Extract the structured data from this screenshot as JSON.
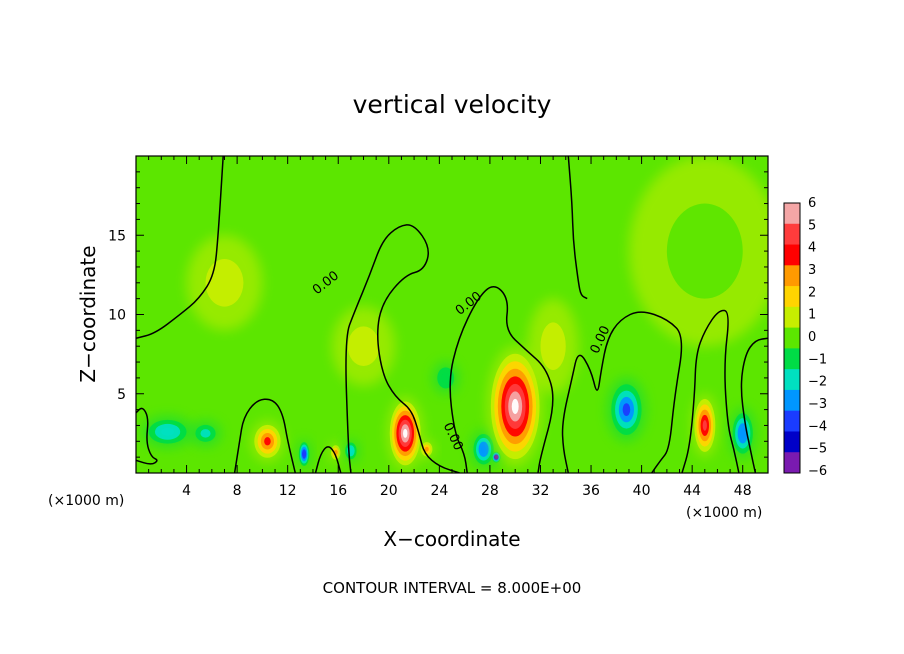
{
  "chart_data": {
    "type": "heatmap",
    "title": "vertical velocity",
    "xlabel": "X−coordinate",
    "ylabel": "Z−coordinate",
    "x_unit": "(×1000 m)",
    "x_unit_right": "(×1000 m)",
    "xlim": [
      0,
      50
    ],
    "ylim": [
      0,
      20
    ],
    "x_ticks": [
      4,
      8,
      12,
      16,
      20,
      24,
      28,
      32,
      36,
      40,
      44,
      48
    ],
    "x_tick_labels": [
      "4",
      "8",
      "12",
      "16",
      "20",
      "24",
      "28",
      "32",
      "36",
      "40",
      "44",
      "48"
    ],
    "y_ticks": [
      5,
      10,
      15
    ],
    "y_tick_labels": [
      "5",
      "10",
      "15"
    ],
    "colorbar": {
      "levels": [
        6,
        5,
        4,
        3,
        2,
        1,
        0,
        -1,
        -2,
        -3,
        -4,
        -5,
        -6
      ],
      "labels": [
        "6",
        "5",
        "4",
        "3",
        "2",
        "1",
        "0",
        "−1",
        "−2",
        "−3",
        "−4",
        "−5",
        "−6"
      ],
      "colors": [
        "#f4a6a6",
        "#ff3c3c",
        "#ff0000",
        "#ff9a00",
        "#ffd400",
        "#c6ee00",
        "#5ce600",
        "#00dc46",
        "#00e0c0",
        "#0096ff",
        "#1a3cff",
        "#0000c8",
        "#7a1ab0"
      ]
    },
    "background_color": "#5ce600",
    "cells": [
      {
        "x": 2.5,
        "z": 2.6,
        "rx": 2.0,
        "rz": 1.0,
        "value": -2.3
      },
      {
        "x": 5.5,
        "z": 2.5,
        "rx": 1.2,
        "rz": 0.8,
        "value": -2.0
      },
      {
        "x": 7.0,
        "z": 12.0,
        "rx": 3.0,
        "rz": 3.0,
        "value": 0.5
      },
      {
        "x": 10.4,
        "z": 2.0,
        "rx": 1.3,
        "rz": 1.3,
        "value": 3.5
      },
      {
        "x": 13.3,
        "z": 1.2,
        "rx": 0.5,
        "rz": 0.9,
        "value": -4.5
      },
      {
        "x": 15.8,
        "z": 1.3,
        "rx": 0.5,
        "rz": 0.6,
        "value": 2.5
      },
      {
        "x": 17.0,
        "z": 1.4,
        "rx": 0.6,
        "rz": 0.7,
        "value": -2.5
      },
      {
        "x": 18.0,
        "z": 8.0,
        "rx": 2.5,
        "rz": 2.5,
        "value": 1.0
      },
      {
        "x": 21.3,
        "z": 2.5,
        "rx": 1.4,
        "rz": 2.3,
        "value": 6.5
      },
      {
        "x": 23.0,
        "z": 1.5,
        "rx": 0.6,
        "rz": 0.6,
        "value": 2.5
      },
      {
        "x": 24.5,
        "z": 6.0,
        "rx": 1.0,
        "rz": 1.0,
        "value": -1.5
      },
      {
        "x": 27.5,
        "z": 1.5,
        "rx": 1.0,
        "rz": 1.2,
        "value": -3.5
      },
      {
        "x": 28.5,
        "z": 1.0,
        "rx": 0.4,
        "rz": 0.4,
        "value": -6.0
      },
      {
        "x": 30.0,
        "z": 4.2,
        "rx": 2.2,
        "rz": 3.8,
        "value": 6.5
      },
      {
        "x": 33.0,
        "z": 8.0,
        "rx": 2.0,
        "rz": 3.0,
        "value": 0.6
      },
      {
        "x": 38.8,
        "z": 4.0,
        "rx": 1.5,
        "rz": 2.0,
        "value": -4.0
      },
      {
        "x": 45.0,
        "z": 3.0,
        "rx": 1.0,
        "rz": 2.0,
        "value": 4.5
      },
      {
        "x": 48.0,
        "z": 2.5,
        "rx": 1.0,
        "rz": 1.6,
        "value": -3.5
      },
      {
        "x": 45.0,
        "z": 14.0,
        "rx": 6.0,
        "rz": 6.0,
        "value": 0.4
      }
    ],
    "contour_label": "0.00",
    "contour_level": 0.0,
    "contour_label_positions": [
      {
        "x": 15.2,
        "z": 11.8,
        "angle": -38
      },
      {
        "x": 26.5,
        "z": 10.5,
        "angle": -38
      },
      {
        "x": 37.0,
        "z": 8.3,
        "angle": -65
      },
      {
        "x": 24.8,
        "z": 2.2,
        "angle": 65
      }
    ],
    "contour_lines": [
      [
        [
          0.0,
          8.5
        ],
        [
          1.5,
          8.8
        ],
        [
          3.5,
          10.0
        ],
        [
          5.0,
          11.0
        ],
        [
          6.2,
          12.5
        ],
        [
          6.5,
          15.0
        ],
        [
          6.9,
          20.0
        ]
      ],
      [
        [
          0.0,
          3.8
        ],
        [
          0.5,
          4.2
        ],
        [
          1.0,
          3.5
        ],
        [
          0.8,
          2.0
        ],
        [
          1.2,
          1.0
        ],
        [
          1.8,
          0.8
        ],
        [
          1.2,
          0.5
        ],
        [
          0.0,
          0.8
        ]
      ],
      [
        [
          7.8,
          0.0
        ],
        [
          8.2,
          2.0
        ],
        [
          8.5,
          3.5
        ],
        [
          9.5,
          4.6
        ],
        [
          10.8,
          4.7
        ],
        [
          11.6,
          3.8
        ],
        [
          12.0,
          2.0
        ],
        [
          12.6,
          0.0
        ]
      ],
      [
        [
          14.2,
          0.0
        ],
        [
          14.6,
          1.2
        ],
        [
          15.2,
          1.8
        ],
        [
          15.8,
          1.2
        ],
        [
          16.2,
          0.0
        ]
      ],
      [
        [
          17.0,
          0.0
        ],
        [
          16.8,
          1.5
        ],
        [
          16.5,
          8.5
        ],
        [
          17.3,
          10.2
        ],
        [
          18.5,
          12.5
        ],
        [
          19.5,
          14.7
        ],
        [
          20.8,
          15.6
        ],
        [
          22.0,
          15.7
        ],
        [
          23.3,
          14.2
        ],
        [
          22.8,
          12.8
        ],
        [
          21.3,
          12.5
        ],
        [
          19.5,
          10.8
        ],
        [
          19.0,
          8.8
        ],
        [
          19.5,
          6.2
        ],
        [
          20.5,
          4.8
        ],
        [
          21.8,
          4.0
        ],
        [
          22.4,
          2.5
        ],
        [
          22.8,
          1.2
        ],
        [
          24.0,
          0.4
        ],
        [
          25.6,
          0.0
        ]
      ],
      [
        [
          26.2,
          0.0
        ],
        [
          26.0,
          1.2
        ],
        [
          25.2,
          2.5
        ],
        [
          24.7,
          5.8
        ],
        [
          25.5,
          8.5
        ],
        [
          27.0,
          11.0
        ],
        [
          28.3,
          12.0
        ],
        [
          29.5,
          11.0
        ],
        [
          29.2,
          9.0
        ],
        [
          30.8,
          7.8
        ],
        [
          32.5,
          6.6
        ],
        [
          33.2,
          4.5
        ],
        [
          32.0,
          1.0
        ],
        [
          31.8,
          0.0
        ]
      ],
      [
        [
          34.2,
          0.0
        ],
        [
          33.8,
          1.5
        ],
        [
          33.7,
          3.2
        ],
        [
          34.5,
          6.0
        ],
        [
          35.0,
          7.8
        ],
        [
          36.0,
          6.5
        ],
        [
          36.5,
          4.8
        ],
        [
          36.8,
          6.5
        ],
        [
          37.3,
          8.5
        ],
        [
          38.3,
          9.7
        ],
        [
          39.9,
          10.3
        ],
        [
          42.1,
          9.7
        ],
        [
          43.4,
          8.6
        ],
        [
          42.6,
          4.8
        ],
        [
          42.2,
          1.5
        ],
        [
          41.5,
          0.8
        ],
        [
          40.8,
          0.0
        ]
      ],
      [
        [
          35.7,
          11.0
        ],
        [
          35.2,
          11.2
        ],
        [
          35.0,
          12.0
        ],
        [
          34.6,
          14.5
        ],
        [
          34.5,
          17.0
        ],
        [
          34.2,
          20.0
        ]
      ],
      [
        [
          43.2,
          0.0
        ],
        [
          43.8,
          1.6
        ],
        [
          44.2,
          5.0
        ],
        [
          44.3,
          7.5
        ],
        [
          45.0,
          9.0
        ],
        [
          46.1,
          10.3
        ],
        [
          47.0,
          10.2
        ],
        [
          46.5,
          6.8
        ],
        [
          46.8,
          3.0
        ],
        [
          47.3,
          1.5
        ],
        [
          47.7,
          0.0
        ]
      ],
      [
        [
          50.0,
          8.5
        ],
        [
          49.0,
          8.4
        ],
        [
          48.2,
          7.5
        ],
        [
          47.8,
          5.5
        ],
        [
          48.2,
          3.0
        ],
        [
          48.6,
          1.5
        ],
        [
          49.0,
          0.0
        ]
      ]
    ]
  },
  "footer_text": "CONTOUR INTERVAL = 8.000E+00"
}
